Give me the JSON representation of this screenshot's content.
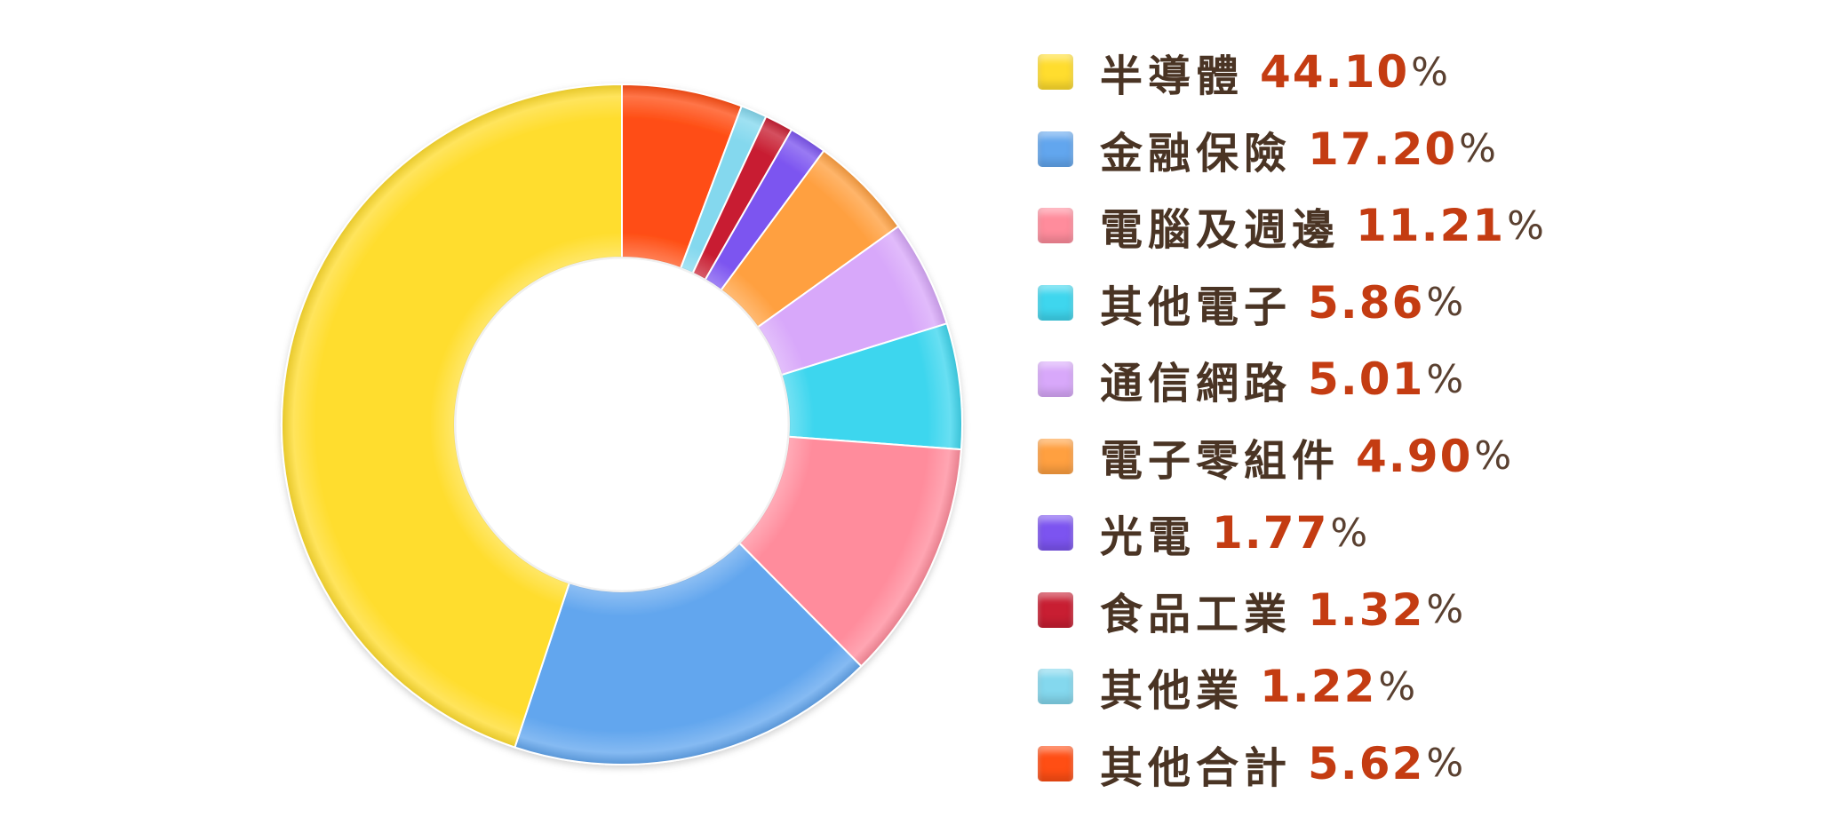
{
  "chart_data": {
    "type": "pie",
    "donut": true,
    "categories": [
      "半導體",
      "金融保險",
      "電腦及週邊",
      "其他電子",
      "通信網路",
      "電子零組件",
      "光電",
      "食品工業",
      "其他業",
      "其他合計"
    ],
    "values": [
      44.1,
      17.2,
      11.21,
      5.86,
      5.01,
      4.9,
      1.77,
      1.32,
      1.22,
      5.62
    ],
    "value_labels": [
      "44.10",
      "17.20",
      "11.21",
      "5.86",
      "5.01",
      "4.90",
      "1.77",
      "1.32",
      "1.22",
      "5.62"
    ],
    "percent_symbol": "%",
    "colors": [
      "#FFDD2E",
      "#62A6EE",
      "#FF8C9C",
      "#3ED6EE",
      "#D8A8FA",
      "#FFA040",
      "#7C54F0",
      "#C81E32",
      "#84D8EE",
      "#FF4E14"
    ],
    "drawing_order": [
      0,
      1,
      2,
      3,
      4,
      5,
      6,
      7,
      8,
      9
    ],
    "slice_order_clockwise_from_top": [
      9,
      8,
      7,
      6,
      5,
      4,
      3,
      2,
      1,
      0
    ],
    "start_angle_deg": 0,
    "legend_position": "right",
    "title": "",
    "xlabel": "",
    "ylabel": ""
  }
}
